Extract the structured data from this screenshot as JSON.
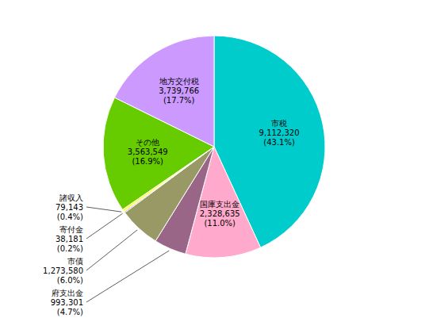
{
  "chart_data": {
    "type": "pie",
    "categories": [
      "市税",
      "国庫支出金",
      "府支出金",
      "市債",
      "寄付金",
      "諸収入",
      "その他",
      "地方交付税"
    ],
    "values": [
      9112320,
      2328635,
      993301,
      1273580,
      38181,
      79143,
      3563549,
      3739766
    ],
    "value_labels": [
      "9,112,320",
      "2,328,635",
      "993,301",
      "1,273,580",
      "38,181",
      "79,143",
      "3,563,549",
      "3,739,766"
    ],
    "percentages": [
      43.1,
      11.0,
      4.7,
      6.0,
      0.2,
      0.4,
      16.9,
      17.7
    ],
    "percentage_labels": [
      "(43.1%)",
      "(11.0%)",
      "(4.7%)",
      "(6.0%)",
      "(0.2%)",
      "(0.4%)",
      "(16.9%)",
      "(17.7%)"
    ],
    "colors": [
      "#00cccc",
      "#ffaacc",
      "#996688",
      "#999966",
      "#aaaacc",
      "#ffff44",
      "#66cc00",
      "#cc99ff"
    ]
  }
}
